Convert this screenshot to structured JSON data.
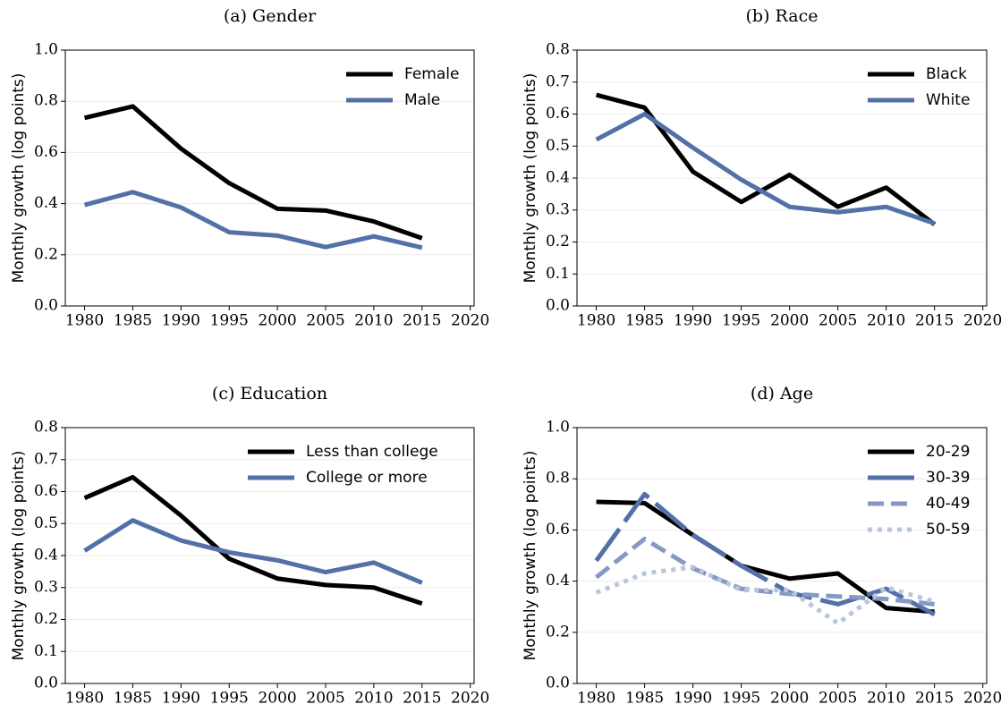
{
  "chart_data": [
    {
      "type": "line",
      "title": "(a) Gender",
      "ylabel": "Monthly growth (log points)",
      "x": [
        1980,
        1985,
        1990,
        1995,
        2000,
        2005,
        2010,
        2015
      ],
      "series": [
        {
          "name": "Female",
          "color": "#000000",
          "linestyle": "solid",
          "values": [
            0.735,
            0.78,
            0.615,
            0.48,
            0.38,
            0.373,
            0.33,
            0.265
          ]
        },
        {
          "name": "Male",
          "color": "#5371a8",
          "linestyle": "solid",
          "values": [
            0.395,
            0.445,
            0.385,
            0.288,
            0.275,
            0.23,
            0.272,
            0.228
          ]
        }
      ],
      "xlim": [
        1978,
        2020.4
      ],
      "xticks": [
        1980,
        1985,
        1990,
        1995,
        2000,
        2005,
        2010,
        2015,
        2020
      ],
      "ylim": [
        0,
        1
      ],
      "yticks": [
        {
          "value": 0,
          "label": "0.0"
        },
        0.2,
        0.4,
        0.6,
        0.8,
        {
          "value": 1,
          "label": "1.0"
        }
      ],
      "grid": true,
      "legend": "upper right"
    },
    {
      "type": "line",
      "title": "(b) Race",
      "ylabel": "Monthly growth (log points)",
      "x": [
        1980,
        1985,
        1990,
        1995,
        2000,
        2005,
        2010,
        2015
      ],
      "series": [
        {
          "name": "Black",
          "color": "#000000",
          "linestyle": "solid",
          "values": [
            0.66,
            0.62,
            0.42,
            0.325,
            0.41,
            0.31,
            0.37,
            0.255
          ]
        },
        {
          "name": "White",
          "color": "#5371a8",
          "linestyle": "solid",
          "values": [
            0.52,
            0.6,
            0.495,
            0.395,
            0.31,
            0.293,
            0.31,
            0.258
          ]
        }
      ],
      "xlim": [
        1978,
        2020.4
      ],
      "xticks": [
        1980,
        1985,
        1990,
        1995,
        2000,
        2005,
        2010,
        2015,
        2020
      ],
      "ylim": [
        0,
        0.8
      ],
      "yticks": [
        {
          "value": 0,
          "label": "0.0"
        },
        0.1,
        0.2,
        0.3,
        0.4,
        0.5,
        0.6,
        0.7,
        0.8
      ],
      "grid": true,
      "legend": "upper right"
    },
    {
      "type": "line",
      "title": "(c) Education",
      "ylabel": "Monthly growth (log points)",
      "x": [
        1980,
        1985,
        1990,
        1995,
        2000,
        2005,
        2010,
        2015
      ],
      "series": [
        {
          "name": "Less than college",
          "color": "#000000",
          "linestyle": "solid",
          "values": [
            0.58,
            0.645,
            0.525,
            0.39,
            0.328,
            0.308,
            0.3,
            0.25
          ]
        },
        {
          "name": "College or more",
          "color": "#5371a8",
          "linestyle": "solid",
          "values": [
            0.415,
            0.51,
            0.447,
            0.41,
            0.385,
            0.348,
            0.378,
            0.315
          ]
        }
      ],
      "xlim": [
        1978,
        2020.4
      ],
      "xticks": [
        1980,
        1985,
        1990,
        1995,
        2000,
        2005,
        2010,
        2015,
        2020
      ],
      "ylim": [
        0,
        0.8
      ],
      "yticks": [
        {
          "value": 0,
          "label": "0.0"
        },
        0.1,
        0.2,
        0.3,
        0.4,
        0.5,
        0.6,
        0.7,
        0.8
      ],
      "grid": true,
      "legend": "upper right"
    },
    {
      "type": "line",
      "title": "(d) Age",
      "ylabel": "Monthly growth (log points)",
      "x": [
        1980,
        1985,
        1990,
        1995,
        2000,
        2005,
        2010,
        2015
      ],
      "series": [
        {
          "name": "20-29",
          "color": "#000000",
          "linestyle": "solid",
          "values": [
            0.71,
            0.705,
            0.58,
            0.46,
            0.41,
            0.43,
            0.295,
            0.28
          ]
        },
        {
          "name": "30-39",
          "color": "#5371a8",
          "linestyle": "longdash",
          "values": [
            0.48,
            0.74,
            0.58,
            0.46,
            0.355,
            0.31,
            0.37,
            0.27
          ]
        },
        {
          "name": "40-49",
          "color": "#8599c4",
          "linestyle": "dashed",
          "values": [
            0.415,
            0.565,
            0.45,
            0.37,
            0.35,
            0.34,
            0.33,
            0.31
          ]
        },
        {
          "name": "50-59",
          "color": "#b9c5dd",
          "linestyle": "dotted",
          "values": [
            0.355,
            0.43,
            0.455,
            0.365,
            0.365,
            0.235,
            0.375,
            0.32
          ]
        }
      ],
      "xlim": [
        1978,
        2020.4
      ],
      "xticks": [
        1980,
        1985,
        1990,
        1995,
        2000,
        2005,
        2010,
        2015,
        2020
      ],
      "ylim": [
        0,
        1
      ],
      "yticks": [
        {
          "value": 0,
          "label": "0.0"
        },
        0.2,
        0.4,
        0.6,
        0.8,
        {
          "value": 1,
          "label": "1.0"
        }
      ],
      "grid": true,
      "legend": "upper right"
    }
  ]
}
